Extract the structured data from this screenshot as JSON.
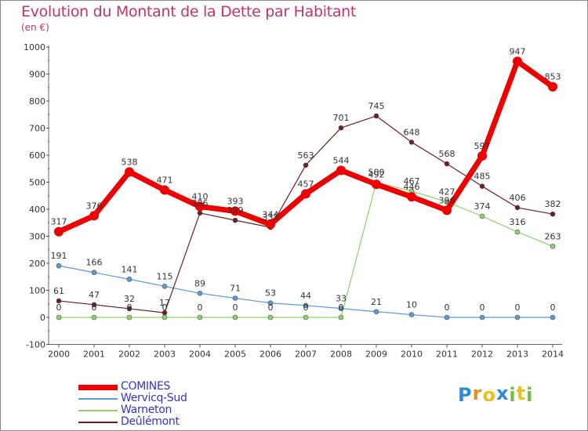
{
  "chart_data": {
    "type": "line",
    "title": "Evolution du Montant de la Dette par Habitant",
    "subtitle": "(en €)",
    "x": [
      "2000",
      "2001",
      "2002",
      "2003",
      "2004",
      "2005",
      "2006",
      "2007",
      "2008",
      "2009",
      "2010",
      "2011",
      "2012",
      "2013",
      "2014"
    ],
    "ylim": [
      -100,
      1000
    ],
    "yticks": [
      -100,
      0,
      100,
      200,
      300,
      400,
      500,
      600,
      700,
      800,
      900,
      1000
    ],
    "grid": false,
    "legend_position": "bottom-left",
    "series": [
      {
        "name": "COMINES",
        "color": "#ee0000",
        "values": [
          317,
          376,
          538,
          471,
          410,
          393,
          344,
          457,
          544,
          492,
          446,
          396,
          597,
          947,
          853
        ]
      },
      {
        "name": "Wervicq-Sud",
        "color": "#5b9bd5",
        "values": [
          191,
          166,
          141,
          115,
          89,
          71,
          53,
          44,
          33,
          21,
          10,
          0,
          0,
          0,
          0
        ]
      },
      {
        "name": "Warneton",
        "color": "#8fd46a",
        "values": [
          0,
          0,
          0,
          0,
          0,
          0,
          0,
          0,
          0,
          500,
          467,
          427,
          374,
          316,
          263
        ]
      },
      {
        "name": "Deûlémont",
        "color": "#6b1f24",
        "values": [
          61,
          47,
          32,
          17,
          386,
          359,
          333,
          563,
          701,
          745,
          648,
          568,
          485,
          406,
          382
        ]
      }
    ]
  },
  "logo": {
    "letters": [
      "P",
      "r",
      "o",
      "x",
      "i",
      "t",
      "i"
    ],
    "colors": [
      "#2e8bd8",
      "#f08c1e",
      "#e8c21a",
      "#2e8bd8",
      "#6fbf3a",
      "#e8c21a",
      "#6fbf3a"
    ]
  }
}
